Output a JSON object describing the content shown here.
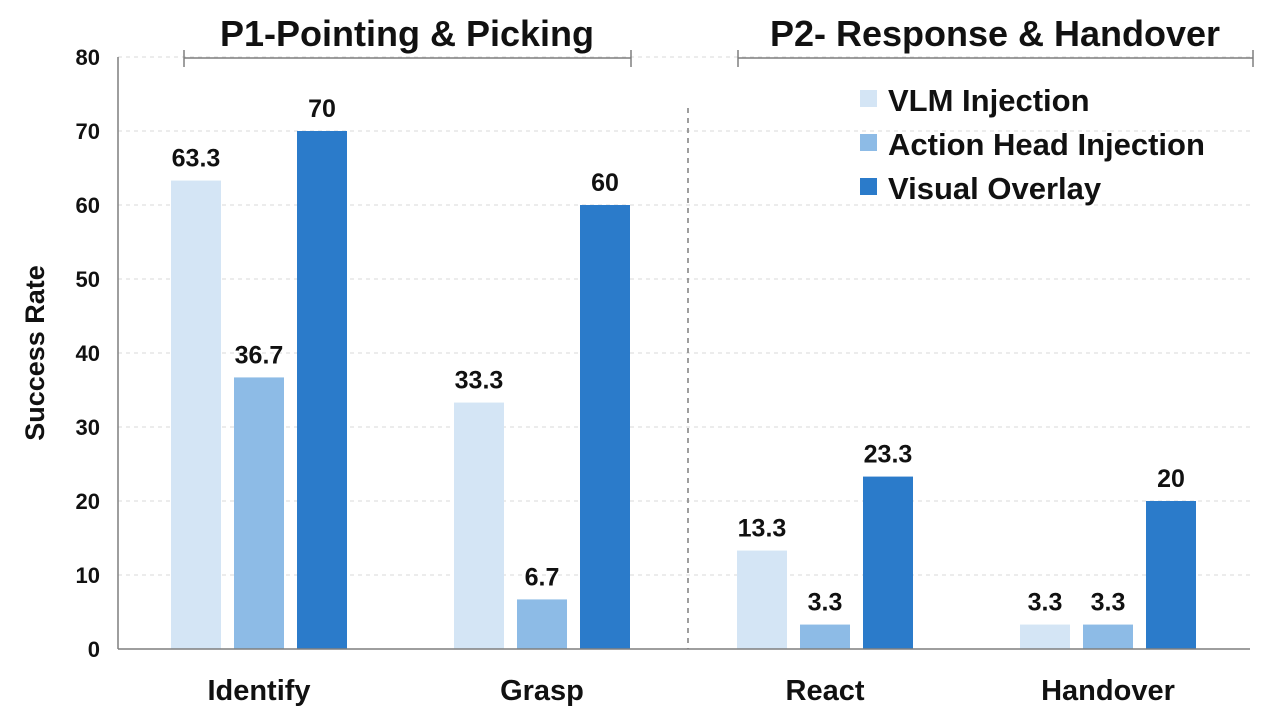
{
  "chart_data": {
    "type": "bar",
    "ylabel": "Success Rate",
    "ylim": [
      0,
      80
    ],
    "yticks": [
      0,
      10,
      20,
      30,
      40,
      50,
      60,
      70,
      80
    ],
    "grid": "horizontal dashed",
    "legend_position": "top-right",
    "categories": [
      "Identify",
      "Grasp",
      "React",
      "Handover"
    ],
    "groups": [
      {
        "title": "P1-Pointing & Picking",
        "categories": [
          "Identify",
          "Grasp"
        ]
      },
      {
        "title": "P2- Response & Handover",
        "categories": [
          "React",
          "Handover"
        ]
      }
    ],
    "series": [
      {
        "name": "VLM Injection",
        "color": "#d4e5f5",
        "values": [
          63.3,
          33.3,
          13.3,
          3.3
        ],
        "labels": [
          "63.3",
          "33.3",
          "13.3",
          "3.3"
        ]
      },
      {
        "name": "Action Head Injection",
        "color": "#8dbbe6",
        "values": [
          36.7,
          6.7,
          3.3,
          3.3
        ],
        "labels": [
          "36.7",
          "6.7",
          "3.3",
          "3.3"
        ]
      },
      {
        "name": "Visual Overlay",
        "color": "#2b7bca",
        "values": [
          70,
          60,
          23.3,
          20
        ],
        "labels": [
          "70",
          "60",
          "23.3",
          "20"
        ]
      }
    ]
  }
}
